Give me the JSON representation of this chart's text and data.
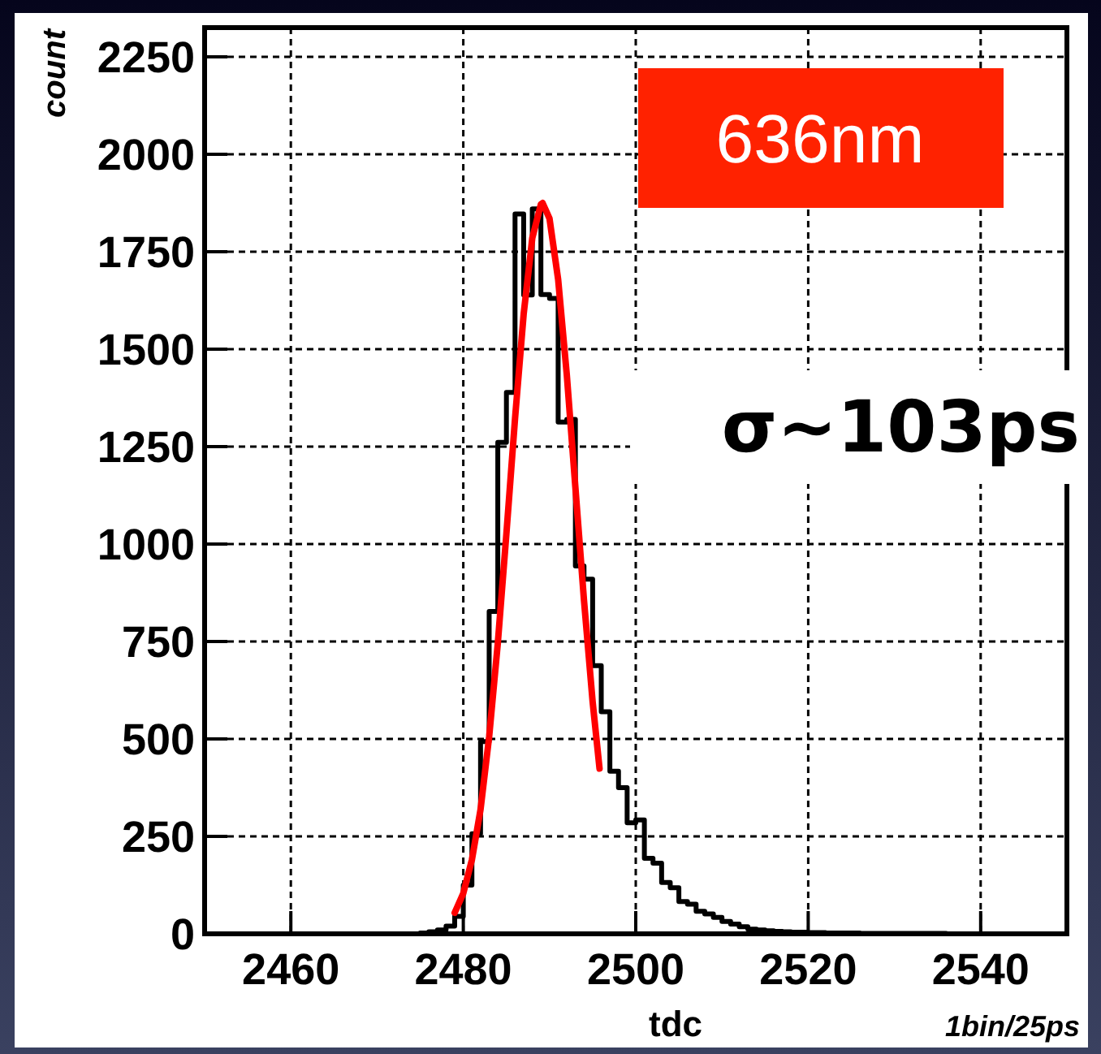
{
  "chart_data": {
    "type": "histogram",
    "xlabel": "tdc",
    "ylabel": "count",
    "annotations": [
      "636nm",
      "σ~103ps",
      "1bin/25ps"
    ],
    "xlim": [
      2450,
      2550
    ],
    "ylim": [
      0,
      2325
    ],
    "xticks": [
      2460,
      2480,
      2500,
      2520,
      2540
    ],
    "yticks": [
      0,
      250,
      500,
      750,
      1000,
      1250,
      1500,
      1750,
      2000,
      2250
    ],
    "grid": true,
    "bins": [
      2450,
      2451,
      2452,
      2453,
      2454,
      2455,
      2456,
      2457,
      2458,
      2459,
      2460,
      2461,
      2462,
      2463,
      2464,
      2465,
      2466,
      2467,
      2468,
      2469,
      2470,
      2471,
      2472,
      2473,
      2474,
      2475,
      2476,
      2477,
      2478,
      2479,
      2480,
      2481,
      2482,
      2483,
      2484,
      2485,
      2486,
      2487,
      2488,
      2489,
      2490,
      2491,
      2492,
      2493,
      2494,
      2495,
      2496,
      2497,
      2498,
      2499,
      2500,
      2501,
      2502,
      2503,
      2504,
      2505,
      2506,
      2507,
      2508,
      2509,
      2510,
      2511,
      2512,
      2513,
      2514,
      2515,
      2516,
      2517,
      2518,
      2519,
      2520,
      2521,
      2522,
      2523,
      2524,
      2525,
      2526,
      2527,
      2528,
      2529,
      2530,
      2531,
      2532,
      2533,
      2534,
      2535,
      2536,
      2537,
      2538,
      2539,
      2540,
      2541,
      2542,
      2543,
      2544,
      2545,
      2546,
      2547,
      2548,
      2549,
      2550
    ],
    "series": [
      {
        "color": "#000000",
        "values": [
          0,
          0,
          0,
          0,
          0,
          0,
          0,
          0,
          0,
          0,
          0,
          0,
          0,
          0,
          0,
          0,
          0,
          0,
          0,
          0,
          0,
          0,
          0,
          0,
          0,
          2,
          5,
          10,
          20,
          45,
          125,
          257,
          493,
          827,
          1261,
          1389,
          1847,
          1639,
          1860,
          1640,
          1630,
          1313,
          1320,
          944,
          910,
          688,
          570,
          417,
          375,
          285,
          292,
          194,
          181,
          132,
          118,
          83,
          76,
          58,
          51,
          42,
          32,
          25,
          18,
          12,
          10,
          8,
          6,
          5,
          4,
          4,
          3,
          3,
          2,
          2,
          2,
          2,
          1,
          1,
          1,
          1,
          1,
          1,
          1,
          1,
          1,
          1,
          0,
          0,
          0,
          0,
          0,
          0,
          0,
          0,
          0,
          0,
          0,
          0,
          0,
          0
        ]
      },
      {
        "type": "line",
        "color": "#ff0000",
        "x": [
          2479,
          2480,
          2481,
          2482,
          2483,
          2484,
          2485,
          2486,
          2487,
          2488,
          2489,
          2489.2,
          2490,
          2491,
          2492,
          2493,
          2494,
          2495,
          2495.8
        ],
        "values": [
          54,
          104,
          190,
          319,
          506,
          745,
          1027,
          1322,
          1590,
          1785,
          1872,
          1875,
          1835,
          1679,
          1435,
          1145,
          855,
          595,
          424
        ]
      }
    ]
  }
}
